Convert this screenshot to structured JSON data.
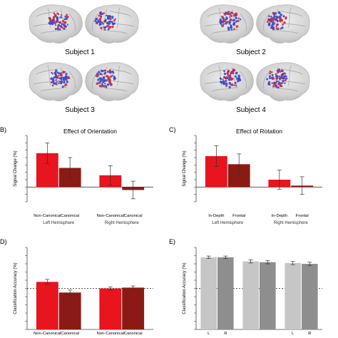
{
  "panel_a": {
    "subjects": [
      "Subject 1",
      "Subject 2",
      "Subject 3",
      "Subject 4"
    ],
    "colors": {
      "brain": "#d4d4d4",
      "brain_shade": "#b9b9b9",
      "blue": "#2d4fd0",
      "red": "#d6223a"
    }
  },
  "chart_data": [
    {
      "panel": "B)",
      "type": "bar",
      "title": "Effect of Orientation",
      "ylabel": "Signal Change (%)",
      "ylim": [
        -0.1,
        0.35
      ],
      "yticks": [
        -0.1,
        -0.05,
        0,
        0.05,
        0.1,
        0.15,
        0.2,
        0.25,
        0.3,
        0.35
      ],
      "groups": [
        {
          "name": "Left Hemisphere",
          "bars": [
            {
              "label": "Non-Canonical",
              "value": 0.23,
              "err": 0.07,
              "color": "#e8141e"
            },
            {
              "label": "Canonical",
              "value": 0.13,
              "err": 0.07,
              "color": "#8b1a14"
            }
          ]
        },
        {
          "name": "Right Hemisphere",
          "bars": [
            {
              "label": "Non-Canonical",
              "value": 0.08,
              "err": 0.065,
              "color": "#e8141e"
            },
            {
              "label": "Canonical",
              "value": -0.02,
              "err": 0.06,
              "color": "#8b1a14"
            }
          ]
        }
      ]
    },
    {
      "panel": "C)",
      "type": "bar",
      "title": "Effect of Rotation",
      "ylabel": "Signal Change (%)",
      "ylim": [
        -0.1,
        0.35
      ],
      "yticks": [
        -0.1,
        -0.05,
        0,
        0.05,
        0.1,
        0.15,
        0.2,
        0.25,
        0.3,
        0.35
      ],
      "groups": [
        {
          "name": "Left Hemisphere",
          "bars": [
            {
              "label": "In-Depth",
              "value": 0.21,
              "err": 0.07,
              "color": "#e8141e"
            },
            {
              "label": "Frontal",
              "value": 0.155,
              "err": 0.07,
              "color": "#8b1a14"
            }
          ]
        },
        {
          "name": "Right Hemisphere",
          "bars": [
            {
              "label": "In-Depth",
              "value": 0.05,
              "err": 0.065,
              "color": "#e8141e"
            },
            {
              "label": "Frontal",
              "value": 0.01,
              "err": 0.06,
              "color": "#8b1a14"
            }
          ]
        }
      ]
    },
    {
      "panel": "D)",
      "type": "bar",
      "title": "",
      "ylabel": "Classification Accuracy (%)",
      "ylim": [
        0,
        100
      ],
      "yticks": [
        0,
        10,
        20,
        30,
        40,
        50,
        60,
        70,
        80,
        90,
        100
      ],
      "chance": 50,
      "groups": [
        {
          "name": "",
          "bars": [
            {
              "label": "Non-Canonical",
              "value": 58,
              "err": 3,
              "color": "#e8141e"
            },
            {
              "label": "Canonical",
              "value": 45,
              "err": 3,
              "color": "#8b1a14"
            }
          ]
        },
        {
          "name": "",
          "bars": [
            {
              "label": "Non-Canonical",
              "value": 50,
              "err": 2,
              "color": "#e8141e"
            },
            {
              "label": "Canonical",
              "value": 51,
              "err": 2,
              "color": "#8b1a14"
            }
          ]
        }
      ]
    },
    {
      "panel": "E)",
      "type": "bar",
      "title": "",
      "ylabel": "Classification Accuracy (%)",
      "ylim": [
        0,
        100
      ],
      "yticks": [
        0,
        10,
        20,
        30,
        40,
        50,
        60,
        70,
        80,
        90,
        100
      ],
      "chance": 50,
      "groups": [
        {
          "name": "",
          "bars": [
            {
              "label": "L",
              "value": 88,
              "err": 1.5,
              "color": "#c6c6c6"
            },
            {
              "label": "R",
              "value": 88,
              "err": 1.5,
              "color": "#8e8e8e"
            }
          ]
        },
        {
          "name": "",
          "bars": [
            {
              "label": "",
              "value": 83,
              "err": 2,
              "color": "#c6c6c6"
            },
            {
              "label": "",
              "value": 82,
              "err": 2,
              "color": "#8e8e8e"
            }
          ]
        },
        {
          "name": "",
          "bars": [
            {
              "label": "L",
              "value": 81,
              "err": 2,
              "color": "#c6c6c6"
            },
            {
              "label": "R",
              "value": 80,
              "err": 2,
              "color": "#8e8e8e"
            }
          ]
        }
      ]
    }
  ]
}
